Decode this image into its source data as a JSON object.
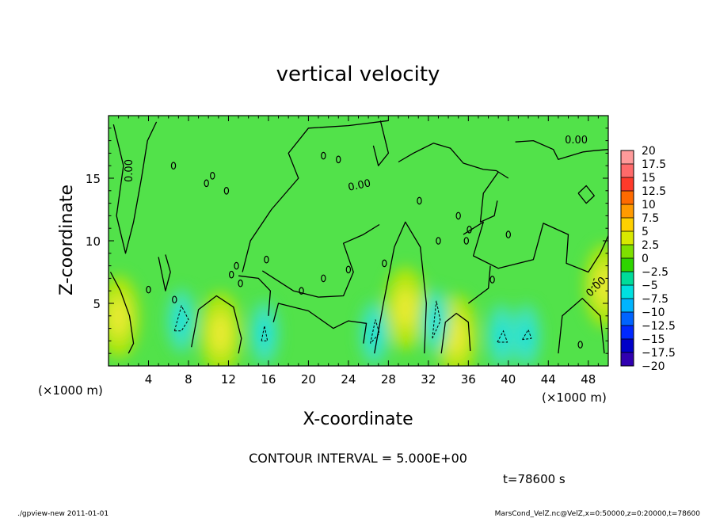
{
  "chart_data": {
    "type": "heatmap",
    "title": "vertical velocity",
    "xlabel": "X-coordinate",
    "ylabel": "Z-coordinate",
    "x_unit_left": "(×1000 m)",
    "x_unit_right": "(×1000 m)",
    "x_ticks": [
      "4",
      "8",
      "12",
      "16",
      "20",
      "24",
      "28",
      "32",
      "36",
      "40",
      "44",
      "48"
    ],
    "y_ticks": [
      "5",
      "10",
      "15"
    ],
    "xlim": [
      0,
      50
    ],
    "ylim": [
      0,
      20
    ],
    "contour_label": "0.00",
    "contour_interval_text": "CONTOUR INTERVAL = 5.000E+00",
    "time_text": "t=78600 s",
    "footer_left": "./gpview-new  2011-01-01",
    "footer_right": "MarsCond_VelZ.nc@VelZ,x=0:50000,z=0:20000,t=78600",
    "colorbar": {
      "labels": [
        "20",
        "17.5",
        "15",
        "12.5",
        "10",
        "7.5",
        "5",
        "2.5",
        "0",
        "−2.5",
        "−5",
        "−7.5",
        "−10",
        "−12.5",
        "−15",
        "−17.5",
        "−20"
      ],
      "colors": [
        "#ff9a9a",
        "#ff6a6a",
        "#ff3a2a",
        "#ff6a00",
        "#ff9a00",
        "#ffd000",
        "#d8e800",
        "#7ee000",
        "#2ed400",
        "#00dc9a",
        "#00e0e0",
        "#00b4ff",
        "#0064ff",
        "#0028ff",
        "#0000c8",
        "#3000b0",
        "#7000c0"
      ]
    },
    "field_colors": {
      "background": "#52e24a",
      "positive": "#c8e800",
      "positive_core": "#e8ea30",
      "negative": "#40e2c0",
      "negative_core": "#00e0e0"
    },
    "positive_cells": [
      {
        "x": 1,
        "z": 3.9
      },
      {
        "x": 11.2,
        "z": 2.6
      },
      {
        "x": 29.7,
        "z": 4.6
      },
      {
        "x": 34.8,
        "z": 2.4
      },
      {
        "x": 49.7,
        "z": 6.4
      }
    ],
    "negative_cells": [
      {
        "x": 7.3,
        "z": 3.6
      },
      {
        "x": 15.6,
        "z": 2.6
      },
      {
        "x": 26.6,
        "z": 2.6
      },
      {
        "x": 32.7,
        "z": 3.6
      },
      {
        "x": 39.3,
        "z": 2.4
      },
      {
        "x": 41.8,
        "z": 2.4
      }
    ],
    "zero_contours": [
      [
        [
          0.2,
          7.5
        ],
        [
          1.2,
          6.0
        ],
        [
          2.1,
          4.0
        ],
        [
          2.5,
          1.8
        ],
        [
          2.0,
          1.0
        ]
      ],
      [
        [
          8.3,
          1.5
        ],
        [
          9.0,
          4.5
        ],
        [
          10.8,
          5.6
        ],
        [
          12.5,
          4.7
        ],
        [
          13.3,
          2.2
        ],
        [
          13.0,
          1.0
        ]
      ],
      [
        [
          26.6,
          1.0
        ],
        [
          27.5,
          5.0
        ],
        [
          28.6,
          9.5
        ],
        [
          29.7,
          11.5
        ],
        [
          31.2,
          9.5
        ],
        [
          31.8,
          5.0
        ],
        [
          31.6,
          1.0
        ]
      ],
      [
        [
          33.3,
          1.0
        ],
        [
          33.7,
          3.5
        ],
        [
          34.8,
          4.2
        ],
        [
          36.0,
          3.5
        ],
        [
          36.2,
          1.2
        ]
      ],
      [
        [
          45.0,
          1.0
        ],
        [
          45.4,
          4.0
        ],
        [
          47.4,
          5.4
        ],
        [
          49.2,
          4.0
        ],
        [
          49.6,
          1.0
        ]
      ],
      [
        [
          0.5,
          19.3
        ],
        [
          1.5,
          16.0
        ],
        [
          0.8,
          12.0
        ],
        [
          1.7,
          9.0
        ],
        [
          2.5,
          11.5
        ],
        [
          3.3,
          15.0
        ],
        [
          3.9,
          18.0
        ],
        [
          4.8,
          19.5
        ]
      ],
      [
        [
          5.0,
          8.7
        ],
        [
          5.7,
          6.0
        ],
        [
          6.2,
          7.5
        ],
        [
          5.7,
          8.9
        ]
      ],
      [
        [
          13.4,
          7.5
        ],
        [
          14.2,
          10.0
        ],
        [
          16.3,
          12.5
        ],
        [
          19.0,
          15.0
        ],
        [
          18.0,
          17.0
        ],
        [
          20.0,
          19.0
        ],
        [
          24.0,
          19.2
        ],
        [
          28.0,
          19.6
        ]
      ],
      [
        [
          13.0,
          7.2
        ],
        [
          15.0,
          7.0
        ],
        [
          16.2,
          6.0
        ],
        [
          16.0,
          4.0
        ]
      ],
      [
        [
          15.4,
          7.6
        ],
        [
          18.5,
          6.0
        ],
        [
          21.0,
          5.5
        ],
        [
          23.5,
          5.6
        ],
        [
          24.5,
          7.5
        ],
        [
          23.5,
          9.8
        ],
        [
          25.5,
          10.5
        ],
        [
          27.1,
          11.3
        ]
      ],
      [
        [
          16.5,
          3.5
        ],
        [
          17.0,
          5.0
        ],
        [
          20.0,
          4.4
        ],
        [
          22.5,
          3.0
        ],
        [
          24.0,
          3.6
        ],
        [
          25.8,
          3.4
        ],
        [
          25.5,
          1.8
        ]
      ],
      [
        [
          35.5,
          10.5
        ],
        [
          37.5,
          11.5
        ],
        [
          36.5,
          8.8
        ],
        [
          39.0,
          7.8
        ],
        [
          42.5,
          8.5
        ],
        [
          43.5,
          11.4
        ],
        [
          46.0,
          10.5
        ],
        [
          45.8,
          8.2
        ],
        [
          48.0,
          7.5
        ],
        [
          49.2,
          9.0
        ],
        [
          50.0,
          10.4
        ]
      ],
      [
        [
          36.0,
          5.0
        ],
        [
          38.0,
          6.2
        ],
        [
          38.2,
          8.0
        ]
      ],
      [
        [
          39.0,
          15.5
        ],
        [
          37.5,
          13.8
        ],
        [
          37.2,
          11.5
        ],
        [
          38.6,
          12.0
        ],
        [
          38.9,
          13.2
        ]
      ],
      [
        [
          40.7,
          17.9
        ],
        [
          42.5,
          18.0
        ],
        [
          44.5,
          17.3
        ],
        [
          45.0,
          16.5
        ],
        [
          47.5,
          17.1
        ],
        [
          48.6,
          17.2
        ],
        [
          50.0,
          17.3
        ]
      ],
      [
        [
          29.0,
          16.3
        ],
        [
          30.5,
          17.0
        ],
        [
          32.5,
          17.8
        ],
        [
          34.2,
          17.4
        ],
        [
          35.5,
          16.2
        ],
        [
          37.5,
          15.7
        ],
        [
          38.8,
          15.6
        ],
        [
          40.0,
          15.0
        ]
      ],
      [
        [
          47.0,
          13.8
        ],
        [
          47.8,
          13.0
        ],
        [
          48.6,
          13.6
        ],
        [
          47.8,
          14.4
        ],
        [
          47.0,
          13.8
        ]
      ],
      [
        [
          27.2,
          19.6
        ],
        [
          28.0,
          17.0
        ],
        [
          27.0,
          16.0
        ],
        [
          26.5,
          17.6
        ]
      ]
    ],
    "zero_labels": [
      {
        "x": 2.1,
        "z": 15.6,
        "angle": -90
      },
      {
        "x": 25.1,
        "z": 14.4,
        "angle": -12
      },
      {
        "x": 46.8,
        "z": 18.0,
        "angle": 0
      },
      {
        "x": 48.8,
        "z": 6.3,
        "angle": -45
      }
    ],
    "small_contours": [
      {
        "x": 6.5,
        "z": 16.0
      },
      {
        "x": 10.4,
        "z": 15.2
      },
      {
        "x": 9.8,
        "z": 14.6
      },
      {
        "x": 21.5,
        "z": 16.8
      },
      {
        "x": 23.0,
        "z": 16.5
      },
      {
        "x": 31.1,
        "z": 13.2
      },
      {
        "x": 35.0,
        "z": 12.0
      },
      {
        "x": 36.1,
        "z": 10.9
      },
      {
        "x": 35.8,
        "z": 10.0
      },
      {
        "x": 24.0,
        "z": 7.7
      },
      {
        "x": 21.5,
        "z": 7.0
      },
      {
        "x": 33.0,
        "z": 10.0
      },
      {
        "x": 27.6,
        "z": 8.2
      },
      {
        "x": 15.8,
        "z": 8.5
      },
      {
        "x": 40.0,
        "z": 10.5
      },
      {
        "x": 11.8,
        "z": 14.0
      },
      {
        "x": 4.0,
        "z": 6.1
      },
      {
        "x": 13.2,
        "z": 6.6
      },
      {
        "x": 12.3,
        "z": 7.3
      },
      {
        "x": 12.8,
        "z": 8.0
      },
      {
        "x": 19.3,
        "z": 6.0
      },
      {
        "x": 47.2,
        "z": 1.7
      },
      {
        "x": 38.4,
        "z": 6.9
      },
      {
        "x": 6.6,
        "z": 5.3
      }
    ],
    "negative_contours": [
      [
        [
          6.6,
          2.8
        ],
        [
          7.3,
          4.8
        ],
        [
          8.0,
          3.7
        ],
        [
          7.3,
          2.8
        ],
        [
          6.6,
          2.8
        ]
      ],
      [
        [
          15.3,
          2.0
        ],
        [
          15.6,
          3.2
        ],
        [
          15.9,
          2.0
        ],
        [
          15.3,
          2.0
        ]
      ],
      [
        [
          26.2,
          1.8
        ],
        [
          26.7,
          3.7
        ],
        [
          27.1,
          2.6
        ],
        [
          26.2,
          1.8
        ]
      ],
      [
        [
          32.4,
          2.2
        ],
        [
          32.8,
          5.2
        ],
        [
          33.2,
          3.6
        ],
        [
          32.4,
          2.2
        ]
      ],
      [
        [
          38.9,
          1.9
        ],
        [
          39.5,
          2.8
        ],
        [
          39.9,
          1.9
        ],
        [
          38.9,
          1.9
        ]
      ],
      [
        [
          41.4,
          2.1
        ],
        [
          42.0,
          2.9
        ],
        [
          42.3,
          2.2
        ],
        [
          41.4,
          2.1
        ]
      ],
      [
        [
          48.6,
          7.0
        ],
        [
          48.3,
          6.1
        ]
      ]
    ]
  }
}
